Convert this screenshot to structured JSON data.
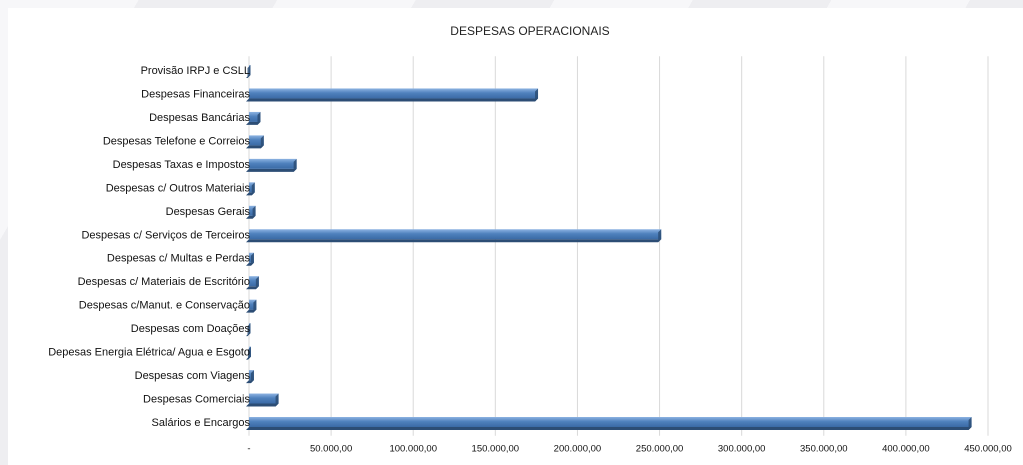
{
  "chart_data": {
    "type": "bar",
    "orientation": "horizontal",
    "title": "DESPESAS OPERACIONAIS",
    "categories": [
      "Provisão IRPJ e CSLL",
      "Despesas Financeiras",
      "Despesas Bancárias",
      "Despesas Telefone e Correios",
      "Despesas Taxas e Impostos",
      "Despesas c/ Outros Materiais",
      "Despesas Gerais",
      "Despesas c/ Serviços de Terceiros",
      "Despesas c/ Multas e Perdas",
      "Despesas c/ Materiais de Escritório",
      "Despesas c/Manut. e Conservação",
      "Despesas com Doações",
      "Depesas Energia Elétrica/ Agua e Esgoto",
      "Despesas com Viagens",
      "Despesas Comerciais",
      "Salários e Encargos"
    ],
    "values": [
      800,
      176000,
      7000,
      9000,
      29000,
      3500,
      4000,
      251000,
      3000,
      6000,
      4500,
      600,
      1200,
      3000,
      18000,
      440000
    ],
    "xlim": [
      0,
      450000
    ],
    "x_ticks": [
      0,
      50000,
      100000,
      150000,
      200000,
      250000,
      300000,
      350000,
      400000,
      450000
    ],
    "x_tick_labels": [
      "-",
      "50.000,00",
      "100.000,00",
      "150.000,00",
      "200.000,00",
      "250.000,00",
      "300.000,00",
      "350.000,00",
      "400.000,00",
      "450.000,00"
    ],
    "grid": true,
    "colors": {
      "bar": "#4f81bd",
      "bar_light": "#8db3e2",
      "bar_dark": "#2c4d75"
    }
  }
}
